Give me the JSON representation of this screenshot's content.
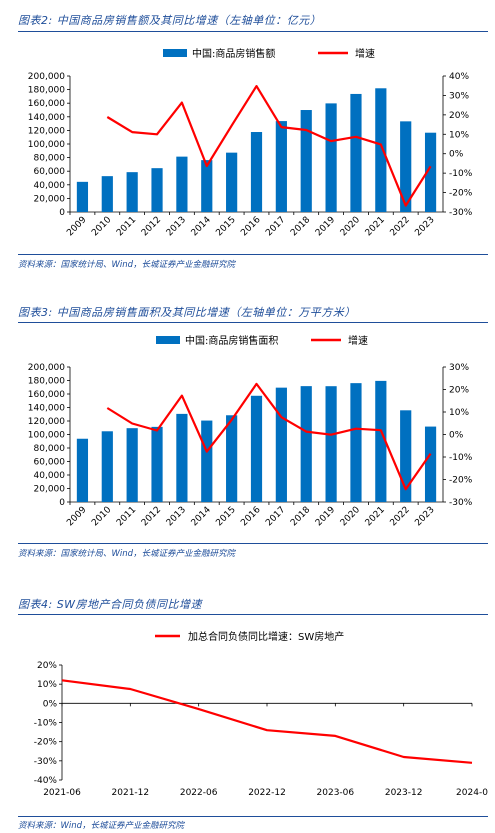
{
  "figures": [
    {
      "title": "图表2:  中国商品房销售额及其同比增速（左轴单位：亿元）",
      "source": "资料来源：国家统计局、Wind，长城证券产业金融研究院"
    },
    {
      "title": "图表3:  中国商品房销售面积及其同比增速（左轴单位：万平方米）",
      "source": "资料来源：国家统计局、Wind，长城证券产业金融研究院"
    },
    {
      "title": "图表4:  SW房地产合同负债同比增速",
      "source": "资料来源：Wind，长城证券产业金融研究院"
    }
  ],
  "chart_data": [
    {
      "type": "bar",
      "categories": [
        "2009",
        "2010",
        "2011",
        "2012",
        "2013",
        "2014",
        "2015",
        "2016",
        "2017",
        "2018",
        "2019",
        "2020",
        "2021",
        "2022",
        "2023"
      ],
      "series": [
        {
          "name": "中国:商品房销售额",
          "kind": "bar",
          "axis": "left",
          "color": "#0070c0",
          "values": [
            44355,
            52721,
            58589,
            64456,
            81428,
            76292,
            87281,
            117627,
            133701,
            149973,
            159725,
            173613,
            181930,
            133308,
            116622
          ]
        },
        {
          "name": "增速",
          "kind": "line",
          "axis": "right",
          "color": "#ff0000",
          "values": [
            null,
            18.9,
            11.1,
            10.0,
            26.3,
            -6.3,
            14.4,
            34.8,
            13.7,
            12.2,
            6.5,
            8.7,
            4.8,
            -26.7,
            -6.5
          ]
        }
      ],
      "y_left": {
        "min": 0,
        "max": 200000,
        "ticks": [
          "0",
          "20,000",
          "40,000",
          "60,000",
          "80,000",
          "100,000",
          "120,000",
          "140,000",
          "160,000",
          "180,000",
          "200,000"
        ]
      },
      "y_right": {
        "min": -30,
        "max": 40,
        "ticks": [
          "-30%",
          "-20%",
          "-10%",
          "0%",
          "10%",
          "20%",
          "30%",
          "40%"
        ]
      },
      "legend": "top-center"
    },
    {
      "type": "bar",
      "categories": [
        "2009",
        "2010",
        "2011",
        "2012",
        "2013",
        "2014",
        "2015",
        "2016",
        "2017",
        "2018",
        "2019",
        "2020",
        "2021",
        "2022",
        "2023"
      ],
      "series": [
        {
          "name": "中国:商品房销售面积",
          "kind": "bar",
          "axis": "left",
          "color": "#0070c0",
          "values": [
            93713,
            104765,
            109367,
            111304,
            130551,
            120649,
            128495,
            157349,
            169408,
            171654,
            171558,
            176086,
            179433,
            135837,
            111735
          ]
        },
        {
          "name": "增速",
          "kind": "line",
          "axis": "right",
          "color": "#ff0000",
          "values": [
            null,
            11.8,
            4.9,
            1.8,
            17.3,
            -7.6,
            6.5,
            22.5,
            7.7,
            1.3,
            -0.1,
            2.6,
            1.9,
            -24.3,
            -8.5
          ]
        }
      ],
      "y_left": {
        "min": 0,
        "max": 200000,
        "ticks": [
          "0",
          "20,000",
          "40,000",
          "60,000",
          "80,000",
          "100,000",
          "120,000",
          "140,000",
          "160,000",
          "180,000",
          "200,000"
        ]
      },
      "y_right": {
        "min": -30,
        "max": 30,
        "ticks": [
          "-30%",
          "-20%",
          "-10%",
          "0%",
          "10%",
          "20%",
          "30%"
        ]
      },
      "legend": "top-center"
    },
    {
      "type": "line",
      "x": [
        "2021-06",
        "2021-12",
        "2022-06",
        "2022-12",
        "2023-06",
        "2023-12",
        "2024-0"
      ],
      "series": [
        {
          "name": "加总合同负债同比增速：SW房地产",
          "color": "#ff0000",
          "values": [
            12,
            7.5,
            -3,
            -14,
            -17,
            -28,
            -31
          ]
        }
      ],
      "y": {
        "min": -40,
        "max": 20,
        "ticks": [
          "-40%",
          "-30%",
          "-20%",
          "-10%",
          "0%",
          "10%",
          "20%"
        ]
      },
      "legend": "top-center"
    }
  ]
}
